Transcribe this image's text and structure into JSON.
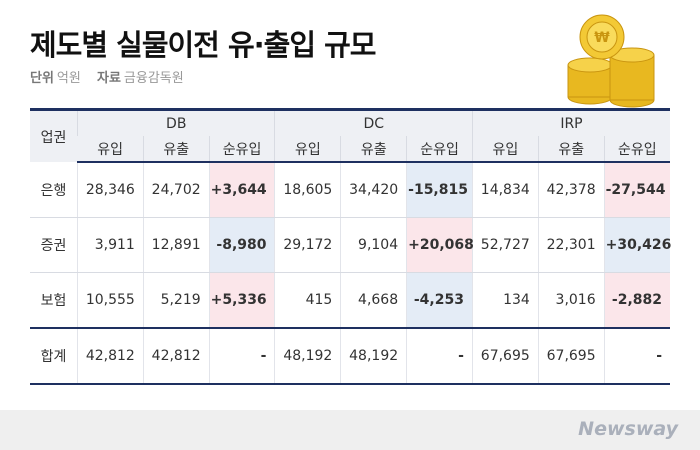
{
  "header": {
    "title": "제도별 실물이전 유·출입 규모",
    "unit_label": "단위",
    "unit": "억원",
    "source_label": "자료",
    "source": "금융감독원"
  },
  "table": {
    "corner": "업권",
    "groups": [
      "DB",
      "DC",
      "IRP"
    ],
    "columns": [
      "유입",
      "유출",
      "순유입",
      "유입",
      "유출",
      "순유입",
      "유입",
      "유출",
      "순유입"
    ],
    "rows": [
      [
        "은행",
        "28,346",
        "24,702",
        "+3,644",
        "18,605",
        "34,420",
        "-15,815",
        "14,834",
        "42,378",
        "-27,544"
      ],
      [
        "증권",
        "3,911",
        "12,891",
        "-8,980",
        "29,172",
        "9,104",
        "+20,068",
        "52,727",
        "22,301",
        "+30,426"
      ],
      [
        "보험",
        "10,555",
        "5,219",
        "+5,336",
        "415",
        "4,668",
        "-4,253",
        "134",
        "3,016",
        "-2,882"
      ],
      [
        "합계",
        "42,812",
        "42,812",
        "-",
        "48,192",
        "48,192",
        "-",
        "67,695",
        "67,695",
        "-"
      ]
    ]
  },
  "footer": {
    "logo": "Newsway"
  }
}
